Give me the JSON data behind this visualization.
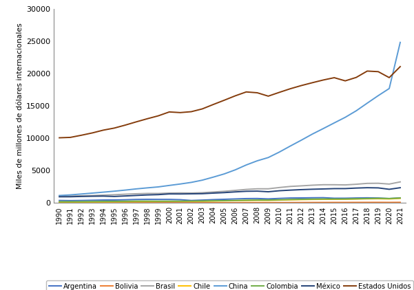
{
  "years": [
    1990,
    1991,
    1992,
    1993,
    1994,
    1995,
    1996,
    1997,
    1998,
    1999,
    2000,
    2001,
    2002,
    2003,
    2004,
    2005,
    2006,
    2007,
    2008,
    2009,
    2010,
    2011,
    2012,
    2013,
    2014,
    2015,
    2016,
    2017,
    2018,
    2019,
    2020,
    2021
  ],
  "series": {
    "Argentina": [
      393,
      371,
      393,
      427,
      461,
      471,
      500,
      548,
      566,
      558,
      555,
      512,
      392,
      453,
      522,
      573,
      629,
      686,
      698,
      634,
      710,
      772,
      786,
      809,
      822,
      737,
      741,
      779,
      801,
      774,
      685,
      787
    ],
    "Bolivia": [
      24,
      24,
      25,
      26,
      28,
      29,
      31,
      33,
      35,
      35,
      37,
      38,
      38,
      39,
      42,
      46,
      51,
      57,
      61,
      62,
      67,
      72,
      78,
      85,
      90,
      93,
      94,
      97,
      101,
      104,
      97,
      107
    ],
    "Brasil": [
      1086,
      1061,
      1108,
      1148,
      1216,
      1280,
      1360,
      1428,
      1477,
      1472,
      1534,
      1555,
      1543,
      1588,
      1699,
      1808,
      1950,
      2100,
      2192,
      2193,
      2389,
      2557,
      2647,
      2750,
      2822,
      2820,
      2794,
      2894,
      3032,
      3048,
      2923,
      3259
    ],
    "Chile": [
      131,
      142,
      155,
      167,
      183,
      198,
      212,
      231,
      237,
      239,
      254,
      258,
      261,
      272,
      299,
      327,
      359,
      389,
      410,
      404,
      451,
      496,
      527,
      554,
      568,
      569,
      582,
      615,
      647,
      661,
      632,
      718
    ],
    "China": [
      1156,
      1253,
      1389,
      1529,
      1676,
      1825,
      1994,
      2179,
      2338,
      2485,
      2713,
      2934,
      3183,
      3527,
      3996,
      4493,
      5120,
      5874,
      6516,
      7018,
      7857,
      8790,
      9695,
      10634,
      11491,
      12366,
      13230,
      14238,
      15418,
      16577,
      17676,
      24800
    ],
    "Colombia": [
      207,
      210,
      218,
      229,
      246,
      256,
      272,
      295,
      296,
      283,
      286,
      288,
      300,
      313,
      340,
      365,
      397,
      430,
      459,
      457,
      498,
      538,
      570,
      600,
      622,
      619,
      622,
      653,
      693,
      724,
      692,
      770
    ],
    "Mexico": [
      960,
      964,
      1012,
      1046,
      1065,
      1012,
      1087,
      1167,
      1246,
      1292,
      1403,
      1397,
      1419,
      1440,
      1527,
      1604,
      1715,
      1807,
      1833,
      1735,
      1893,
      1986,
      2065,
      2126,
      2169,
      2221,
      2225,
      2306,
      2361,
      2334,
      2116,
      2360
    ],
    "Estados Unidos": [
      10069,
      10130,
      10460,
      10820,
      11250,
      11570,
      12030,
      12530,
      13010,
      13460,
      14060,
      13960,
      14100,
      14530,
      15210,
      15870,
      16550,
      17150,
      17020,
      16500,
      17080,
      17640,
      18130,
      18570,
      18990,
      19350,
      18860,
      19390,
      20370,
      20280,
      19360,
      21060
    ]
  },
  "colors": {
    "Argentina": "#4472C4",
    "Bolivia": "#ED7D31",
    "Brasil": "#A5A5A5",
    "Chile": "#FFC000",
    "China": "#5B9BD5",
    "Colombia": "#70AD47",
    "Mexico": "#264478",
    "Estados Unidos": "#843C0C"
  },
  "legend_labels": {
    "Mexico": "México"
  },
  "ylabel": "Miles de millones de dólares internacionales",
  "yticks": [
    0,
    5000,
    10000,
    15000,
    20000,
    25000,
    30000
  ],
  "ytick_labels": [
    "0",
    "5000",
    "10000",
    "15000",
    "20000",
    "25000",
    "30000"
  ],
  "background_color": "#FFFFFF"
}
